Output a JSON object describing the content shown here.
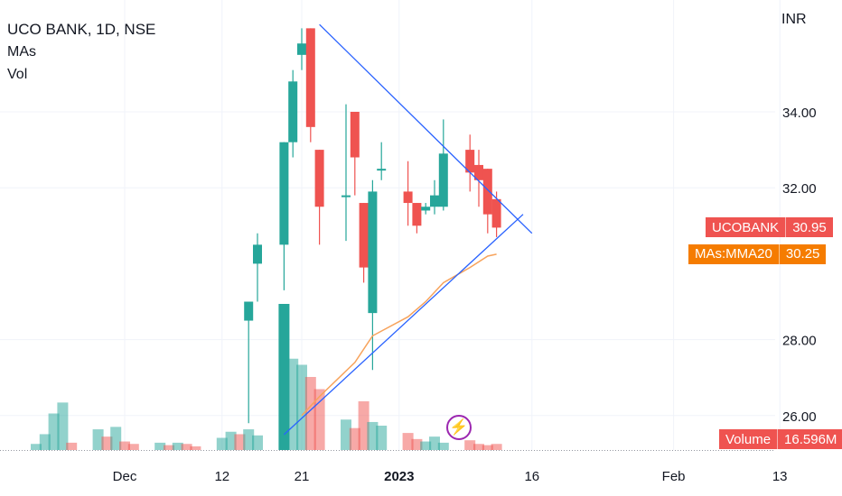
{
  "legend": {
    "title": "UCO BANK, 1D, NSE",
    "ma_label": "MAs",
    "vol_label": "Vol"
  },
  "axis": {
    "unit_label": "INR"
  },
  "price_tag": {
    "label": "UCOBANK",
    "value": "30.95",
    "color": "#ef5350"
  },
  "ma_tag": {
    "label": "MAs:MMA20",
    "value": "30.25",
    "color": "#f57c00"
  },
  "volume_tag": {
    "label": "Volume",
    "value": "16.596M",
    "color": "#ef5350"
  },
  "event_icon": "lightning-icon",
  "chart_data": {
    "type": "candlestick",
    "title": "UCO BANK, 1D, NSE",
    "y_unit": "INR",
    "ylim": [
      25.5,
      36.2
    ],
    "y_ticks": [
      "26.00",
      "28.00",
      "32.00",
      "34.00"
    ],
    "x_ticks": [
      {
        "label": "Dec",
        "date": "2022-12-01"
      },
      {
        "label": "12",
        "date": "2022-12-12"
      },
      {
        "label": "21",
        "date": "2022-12-21"
      },
      {
        "label": "2023",
        "date": "2023-01-01"
      },
      {
        "label": "16",
        "date": "2023-01-16"
      },
      {
        "label": "Feb",
        "date": "2023-02-01"
      },
      {
        "label": "13",
        "date": "2023-02-13"
      }
    ],
    "grid": true,
    "candles": [
      {
        "date": "2022-11-21",
        "volume": 0.5
      },
      {
        "date": "2022-11-22",
        "volume": 1.3
      },
      {
        "date": "2022-11-23",
        "volume": 3.0
      },
      {
        "date": "2022-11-24",
        "volume": 3.9
      },
      {
        "date": "2022-11-25",
        "volume": 0.6
      },
      {
        "date": "2022-11-28",
        "volume": 1.7
      },
      {
        "date": "2022-11-29",
        "volume": 1.1
      },
      {
        "date": "2022-11-30",
        "volume": 1.9
      },
      {
        "date": "2022-12-01",
        "volume": 0.7
      },
      {
        "date": "2022-12-02",
        "volume": 0.5
      },
      {
        "date": "2022-12-05",
        "volume": 0.6
      },
      {
        "date": "2022-12-06",
        "volume": 0.4
      },
      {
        "date": "2022-12-07",
        "volume": 0.6
      },
      {
        "date": "2022-12-08",
        "volume": 0.5
      },
      {
        "date": "2022-12-09",
        "volume": 0.3
      },
      {
        "date": "2022-12-12",
        "volume": 1.0
      },
      {
        "date": "2022-12-13",
        "volume": 1.5
      },
      {
        "date": "2022-12-14",
        "volume": 1.3
      },
      {
        "date": "2022-12-15",
        "volume": 1.7,
        "open": 28.5,
        "high": 29.0,
        "low": 25.8,
        "close": 29.0
      },
      {
        "date": "2022-12-16",
        "volume": 1.2,
        "open": 30.0,
        "high": 30.8,
        "low": 29.0,
        "close": 30.5
      },
      {
        "date": "2022-12-19",
        "volume": 12.0,
        "open": 30.5,
        "high": 33.2,
        "low": 29.3,
        "close": 33.2
      },
      {
        "date": "2022-12-20",
        "volume": 7.5,
        "open": 33.2,
        "high": 35.1,
        "low": 32.8,
        "close": 34.8
      },
      {
        "date": "2022-12-21",
        "volume": 7.0,
        "open": 35.5,
        "high": 36.2,
        "low": 35.1,
        "close": 35.8
      },
      {
        "date": "2022-12-22",
        "volume": 6.0,
        "open": 36.2,
        "high": 36.2,
        "low": 33.2,
        "close": 33.6
      },
      {
        "date": "2022-12-23",
        "volume": 5.0,
        "open": 33.0,
        "high": 33.0,
        "low": 30.5,
        "close": 31.5
      },
      {
        "date": "2022-12-26",
        "volume": 2.5,
        "open": 31.8,
        "high": 34.2,
        "low": 30.6,
        "close": 31.8
      },
      {
        "date": "2022-12-27",
        "volume": 1.8,
        "open": 34.0,
        "high": 34.0,
        "low": 31.8,
        "close": 32.8
      },
      {
        "date": "2022-12-28",
        "volume": 4.0,
        "open": 31.6,
        "high": 31.6,
        "low": 29.5,
        "close": 29.9
      },
      {
        "date": "2022-12-29",
        "volume": 2.3,
        "open": 28.7,
        "high": 32.2,
        "low": 27.2,
        "close": 31.9
      },
      {
        "date": "2022-12-30",
        "volume": 2.0,
        "open": 32.5,
        "high": 33.2,
        "low": 32.2,
        "close": 32.5
      },
      {
        "date": "2023-01-02",
        "volume": 1.4,
        "open": 31.9,
        "high": 32.7,
        "low": 31.0,
        "close": 31.6
      },
      {
        "date": "2023-01-03",
        "volume": 0.9,
        "open": 31.6,
        "high": 31.6,
        "low": 30.8,
        "close": 31.0
      },
      {
        "date": "2023-01-04",
        "volume": 0.7,
        "open": 31.4,
        "high": 31.6,
        "low": 31.3,
        "close": 31.5
      },
      {
        "date": "2023-01-05",
        "volume": 1.1,
        "open": 31.5,
        "high": 32.2,
        "low": 31.3,
        "close": 31.8
      },
      {
        "date": "2023-01-06",
        "volume": 0.6,
        "open": 31.5,
        "high": 33.8,
        "low": 31.4,
        "close": 32.9
      },
      {
        "date": "2023-01-09",
        "volume": 0.8,
        "open": 33.0,
        "high": 33.4,
        "low": 31.9,
        "close": 32.4
      },
      {
        "date": "2023-01-10",
        "volume": 0.5,
        "open": 32.6,
        "high": 33.0,
        "low": 31.5,
        "close": 32.2
      },
      {
        "date": "2023-01-11",
        "volume": 0.4,
        "open": 32.5,
        "high": 32.5,
        "low": 30.8,
        "close": 31.3
      },
      {
        "date": "2023-01-12",
        "volume": 0.5,
        "open": 31.7,
        "high": 31.9,
        "low": 30.7,
        "close": 30.95
      }
    ],
    "moving_average": {
      "name": "MMA20",
      "points": [
        {
          "date": "2022-12-21",
          "value": 26.0
        },
        {
          "date": "2022-12-23",
          "value": 26.5
        },
        {
          "date": "2022-12-27",
          "value": 27.4
        },
        {
          "date": "2022-12-29",
          "value": 28.1
        },
        {
          "date": "2023-01-02",
          "value": 28.6
        },
        {
          "date": "2023-01-04",
          "value": 29.0
        },
        {
          "date": "2023-01-06",
          "value": 29.5
        },
        {
          "date": "2023-01-09",
          "value": 29.9
        },
        {
          "date": "2023-01-11",
          "value": 30.2
        },
        {
          "date": "2023-01-12",
          "value": 30.25
        }
      ]
    },
    "trendlines": [
      {
        "from": {
          "date": "2022-12-23",
          "value": 36.3
        },
        "to": {
          "date": "2023-01-16",
          "value": 30.8
        }
      },
      {
        "from": {
          "date": "2022-12-19",
          "value": 25.5
        },
        "to": {
          "date": "2023-01-15",
          "value": 31.3
        }
      }
    ],
    "last_price": 30.95,
    "last_ma": 30.25,
    "last_volume": "16.596M"
  }
}
